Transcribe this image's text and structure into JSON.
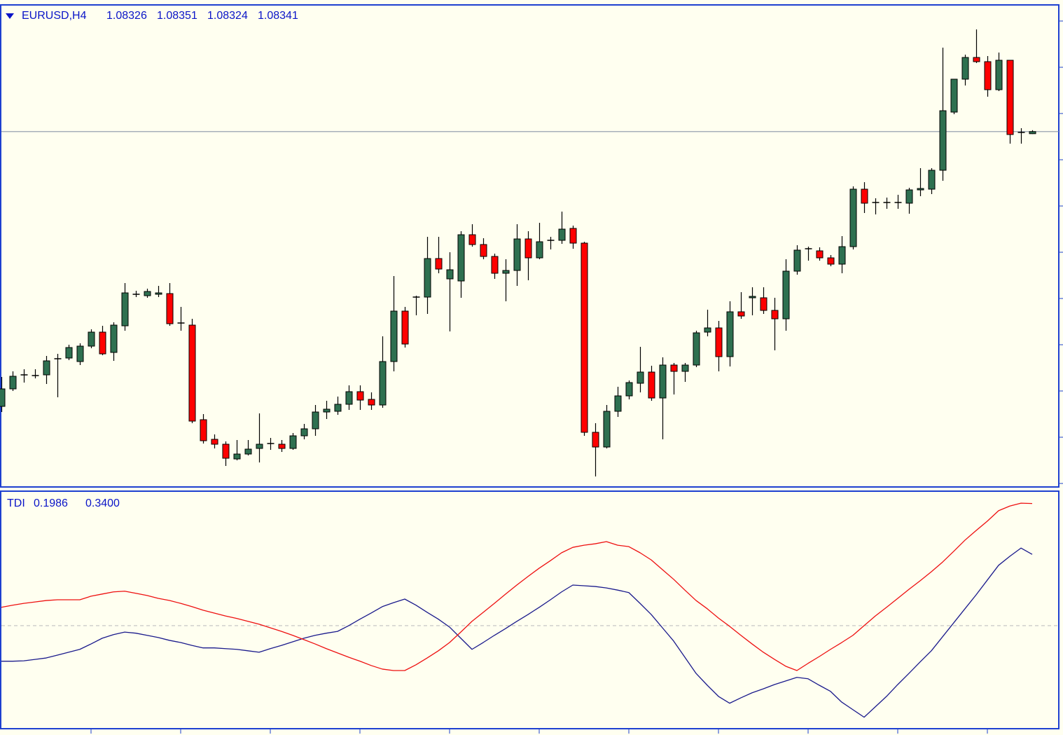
{
  "chart_data": [
    {
      "type": "candlestick",
      "title": "EURUSD,H4",
      "open": [
        1.0638,
        1.06505,
        1.06605,
        1.06605,
        1.06605,
        1.06715,
        1.06725,
        1.067,
        1.0681,
        1.0691,
        1.06765,
        1.06955,
        1.07175,
        1.0717,
        1.0718,
        1.07185,
        1.0697,
        1.0696,
        1.06285,
        1.06145,
        1.0611,
        1.06005,
        1.0604,
        1.0608,
        1.0611,
        1.0611,
        1.0608,
        1.0617,
        1.0622,
        1.0634,
        1.06345,
        1.06395,
        1.06485,
        1.0643,
        1.0639,
        1.067,
        1.0706,
        1.07155,
        1.0716,
        1.07435,
        1.0729,
        1.07275,
        1.07605,
        1.07535,
        1.0745,
        1.0733,
        1.0735,
        1.07575,
        1.0744,
        1.0756,
        1.07565,
        1.0765,
        1.07545,
        1.06195,
        1.0609,
        1.06345,
        1.06455,
        1.06545,
        1.06625,
        1.0644,
        1.06675,
        1.0663,
        1.06675,
        1.0691,
        1.0694,
        1.06735,
        1.07055,
        1.07155,
        1.07155,
        1.07065,
        1.07005,
        1.07345,
        1.075,
        1.0749,
        1.0744,
        1.07395,
        1.0752,
        1.0793,
        1.0783,
        1.0783,
        1.0783,
        1.0783,
        1.07925,
        1.0793,
        1.08065,
        1.0848,
        1.08715,
        1.0887,
        1.0884,
        1.0864,
        1.0885,
        1.0833,
        1.08326
      ],
      "high": [
        1.0659,
        1.0663,
        1.06645,
        1.06645,
        1.0674,
        1.06755,
        1.0682,
        1.0683,
        1.0693,
        1.06955,
        1.0698,
        1.0726,
        1.07205,
        1.0722,
        1.0724,
        1.0726,
        1.0709,
        1.07005,
        1.06325,
        1.0618,
        1.0613,
        1.0614,
        1.0614,
        1.0633,
        1.06155,
        1.0614,
        1.0619,
        1.06255,
        1.0639,
        1.0642,
        1.0645,
        1.0653,
        1.0653,
        1.0648,
        1.0688,
        1.0731,
        1.0709,
        1.0717,
        1.0759,
        1.0759,
        1.0748,
        1.0763,
        1.0768,
        1.0758,
        1.0747,
        1.0743,
        1.0768,
        1.0763,
        1.0769,
        1.0759,
        1.0777,
        1.0767,
        1.07555,
        1.0626,
        1.0639,
        1.0652,
        1.06565,
        1.06805,
        1.0667,
        1.0673,
        1.0669,
        1.0669,
        1.0692,
        1.0707,
        1.0699,
        1.0713,
        1.07195,
        1.0723,
        1.0723,
        1.07155,
        1.0743,
        1.0753,
        1.0752,
        1.07515,
        1.0746,
        1.07595,
        1.0795,
        1.0798,
        1.07865,
        1.0787,
        1.0789,
        1.0794,
        1.0808,
        1.0808,
        1.0894,
        1.08715,
        1.0889,
        1.0907,
        1.0888,
        1.08905,
        1.0885,
        1.08365,
        1.08351
      ],
      "low": [
        1.0634,
        1.0649,
        1.0655,
        1.0658,
        1.0654,
        1.06445,
        1.0671,
        1.06675,
        1.06795,
        1.06745,
        1.06705,
        1.0692,
        1.0716,
        1.07155,
        1.0716,
        1.06955,
        1.0692,
        1.0626,
        1.06115,
        1.0608,
        1.05955,
        1.05995,
        1.0603,
        1.0598,
        1.0607,
        1.06055,
        1.0607,
        1.06145,
        1.0617,
        1.0629,
        1.0632,
        1.06355,
        1.06355,
        1.06355,
        1.0637,
        1.0663,
        1.068,
        1.0703,
        1.0704,
        1.0733,
        1.06915,
        1.07155,
        1.0752,
        1.0743,
        1.0729,
        1.0713,
        1.0724,
        1.0728,
        1.0743,
        1.075,
        1.0754,
        1.07505,
        1.0617,
        1.0588,
        1.0608,
        1.06305,
        1.0643,
        1.0648,
        1.0642,
        1.06145,
        1.06465,
        1.06555,
        1.0666,
        1.0688,
        1.0663,
        1.06665,
        1.07005,
        1.0703,
        1.0704,
        1.0678,
        1.0692,
        1.0732,
        1.0742,
        1.0742,
        1.0738,
        1.0733,
        1.075,
        1.0776,
        1.0775,
        1.0779,
        1.0779,
        1.07755,
        1.0788,
        1.07895,
        1.0799,
        1.08465,
        1.0867,
        1.0883,
        1.0859,
        1.0863,
        1.08255,
        1.08255,
        1.08324
      ],
      "close": [
        1.06505,
        1.06595,
        1.06605,
        1.066,
        1.06705,
        1.0672,
        1.068,
        1.0681,
        1.0691,
        1.06755,
        1.0696,
        1.0719,
        1.0718,
        1.072,
        1.0719,
        1.0697,
        1.06975,
        1.06275,
        1.06135,
        1.0611,
        1.0601,
        1.0604,
        1.06075,
        1.0611,
        1.06115,
        1.0608,
        1.0617,
        1.0622,
        1.0634,
        1.0636,
        1.06395,
        1.06485,
        1.06425,
        1.0639,
        1.067,
        1.0706,
        1.06825,
        1.0716,
        1.07435,
        1.0736,
        1.07355,
        1.07605,
        1.07535,
        1.0745,
        1.0733,
        1.0735,
        1.07575,
        1.0744,
        1.07555,
        1.07565,
        1.07645,
        1.07545,
        1.06195,
        1.0609,
        1.06345,
        1.06455,
        1.0655,
        1.06625,
        1.0644,
        1.06675,
        1.0663,
        1.06675,
        1.06905,
        1.0694,
        1.06735,
        1.07055,
        1.07025,
        1.07165,
        1.07065,
        1.07005,
        1.07345,
        1.07495,
        1.07505,
        1.0744,
        1.07395,
        1.0752,
        1.0793,
        1.0783,
        1.07835,
        1.07835,
        1.07835,
        1.07925,
        1.07935,
        1.08065,
        1.0849,
        1.08715,
        1.0887,
        1.0884,
        1.0864,
        1.0885,
        1.0832,
        1.08335,
        1.08341
      ],
      "up_color": "#2e7050",
      "down_color": "#ff0000",
      "bid_line_color": "#8a96a8",
      "ylim": [
        1.05815,
        1.0924
      ]
    },
    {
      "type": "line",
      "title": "TDI",
      "series": [
        {
          "color": "#1a1a8c",
          "values": [
            -0.099,
            -0.099,
            -0.098,
            -0.094,
            -0.09,
            -0.082,
            -0.074,
            -0.066,
            -0.051,
            -0.035,
            -0.025,
            -0.018,
            -0.021,
            -0.027,
            -0.033,
            -0.041,
            -0.047,
            -0.055,
            -0.062,
            -0.062,
            -0.064,
            -0.066,
            -0.07,
            -0.074,
            -0.064,
            -0.055,
            -0.045,
            -0.035,
            -0.027,
            -0.021,
            -0.016,
            0,
            0.018,
            0.035,
            0.053,
            0.064,
            0.074,
            0.057,
            0.037,
            0.018,
            -0.004,
            -0.035,
            -0.066,
            -0.047,
            -0.027,
            -0.008,
            0.012,
            0.031,
            0.051,
            0.072,
            0.094,
            0.113,
            0.111,
            0.109,
            0.105,
            0.099,
            0.092,
            0.062,
            0.031,
            -0.006,
            -0.043,
            -0.088,
            -0.133,
            -0.166,
            -0.197,
            -0.216,
            -0.201,
            -0.187,
            -0.176,
            -0.164,
            -0.154,
            -0.144,
            -0.148,
            -0.166,
            -0.183,
            -0.213,
            -0.234,
            -0.255,
            -0.226,
            -0.197,
            -0.164,
            -0.133,
            -0.101,
            -0.07,
            -0.031,
            0.008,
            0.047,
            0.086,
            0.127,
            0.168,
            0.193,
            0.216,
            0.1986
          ]
        },
        {
          "color": "#ee1010",
          "last_value_label": "0.3400",
          "values": [
            0.051,
            0.057,
            0.062,
            0.066,
            0.07,
            0.072,
            0.072,
            0.072,
            0.082,
            0.088,
            0.094,
            0.096,
            0.09,
            0.084,
            0.076,
            0.07,
            0.062,
            0.053,
            0.043,
            0.035,
            0.027,
            0.02,
            0.012,
            0.004,
            -0.006,
            -0.016,
            -0.027,
            -0.039,
            -0.051,
            -0.064,
            -0.076,
            -0.088,
            -0.099,
            -0.111,
            -0.121,
            -0.125,
            -0.125,
            -0.109,
            -0.09,
            -0.07,
            -0.047,
            -0.018,
            0.012,
            0.037,
            0.062,
            0.088,
            0.113,
            0.137,
            0.16,
            0.181,
            0.203,
            0.218,
            0.224,
            0.228,
            0.234,
            0.224,
            0.22,
            0.203,
            0.183,
            0.156,
            0.129,
            0.099,
            0.07,
            0.047,
            0.021,
            -0.002,
            -0.027,
            -0.051,
            -0.074,
            -0.094,
            -0.113,
            -0.125,
            -0.105,
            -0.086,
            -0.066,
            -0.047,
            -0.027,
            0,
            0.027,
            0.051,
            0.076,
            0.101,
            0.125,
            0.15,
            0.177,
            0.207,
            0.238,
            0.265,
            0.291,
            0.32,
            0.333,
            0.341,
            0.34
          ]
        }
      ],
      "level": 0,
      "level_color": "#c0c0c0",
      "ylim": [
        -0.285,
        0.3725
      ]
    }
  ]
}
